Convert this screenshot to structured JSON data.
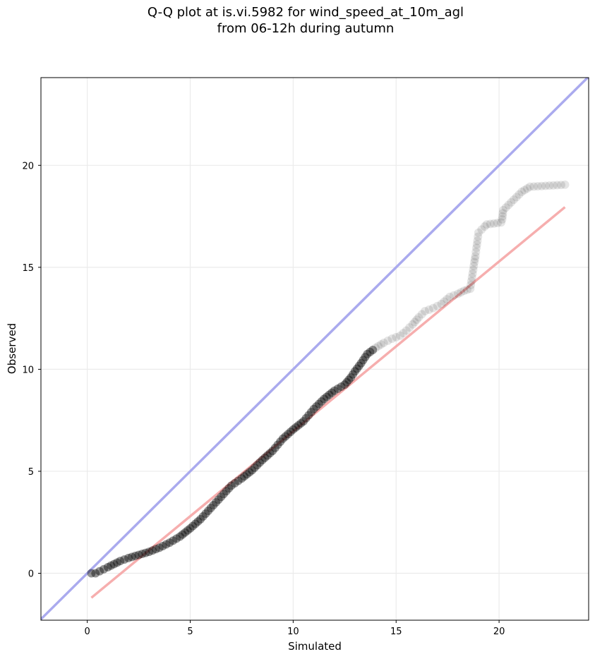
{
  "title_line1": "Q-Q plot at is.vi.5982 for wind_speed_at_10m_agl",
  "title_line2": "from 06-12h during autumn",
  "chart_data": {
    "type": "scatter",
    "title": "Q-Q plot at is.vi.5982 for wind_speed_at_10m_agl\nfrom 06-12h during autumn",
    "xlabel": "Simulated",
    "ylabel": "Observed",
    "xlim": [
      -2.25,
      24.35
    ],
    "ylim": [
      -2.3,
      24.3
    ],
    "xticks": [
      0,
      5,
      10,
      15,
      20
    ],
    "yticks": [
      0,
      5,
      10,
      15,
      20
    ],
    "grid": true,
    "colors": {
      "points": "#000000",
      "identity_line": "#aaaaee",
      "fit_line": "#f5a5a5"
    },
    "reference_lines": [
      {
        "label": "y = x",
        "x": [
          -2.25,
          24.35
        ],
        "y": [
          -2.25,
          24.35
        ]
      },
      {
        "label": "fit",
        "x": [
          0.2,
          23.2
        ],
        "y": [
          -1.2,
          17.95
        ]
      }
    ],
    "points": {
      "x": [
        0.2,
        0.4,
        0.6,
        0.8,
        1.0,
        1.3,
        1.6,
        2.0,
        2.5,
        3.0,
        3.5,
        4.0,
        4.5,
        5.0,
        5.5,
        6.0,
        6.5,
        7.0,
        7.5,
        8.0,
        8.5,
        9.0,
        9.5,
        10.0,
        10.5,
        11.0,
        11.5,
        12.0,
        12.5,
        12.8,
        13.0,
        13.3,
        13.6,
        14.0,
        14.4,
        14.8,
        15.2,
        15.5,
        15.8,
        16.1,
        16.4,
        16.8,
        17.2,
        17.6,
        18.0,
        18.3,
        18.6,
        18.8,
        18.85,
        18.9,
        18.95,
        19.0,
        19.3,
        19.4,
        20.1,
        20.15,
        20.2,
        21.1,
        21.5,
        23.2
      ],
      "y": [
        0.0,
        0.0,
        0.1,
        0.2,
        0.3,
        0.45,
        0.6,
        0.75,
        0.9,
        1.05,
        1.25,
        1.5,
        1.8,
        2.2,
        2.65,
        3.2,
        3.75,
        4.3,
        4.65,
        5.05,
        5.55,
        6.0,
        6.6,
        7.05,
        7.45,
        8.05,
        8.55,
        8.95,
        9.25,
        9.6,
        9.9,
        10.3,
        10.75,
        11.05,
        11.3,
        11.5,
        11.65,
        11.9,
        12.2,
        12.55,
        12.85,
        13.0,
        13.2,
        13.55,
        13.7,
        13.85,
        13.95,
        15.25,
        15.55,
        15.95,
        16.3,
        16.7,
        17.0,
        17.1,
        17.2,
        17.35,
        17.8,
        18.7,
        18.95,
        19.05
      ]
    }
  }
}
